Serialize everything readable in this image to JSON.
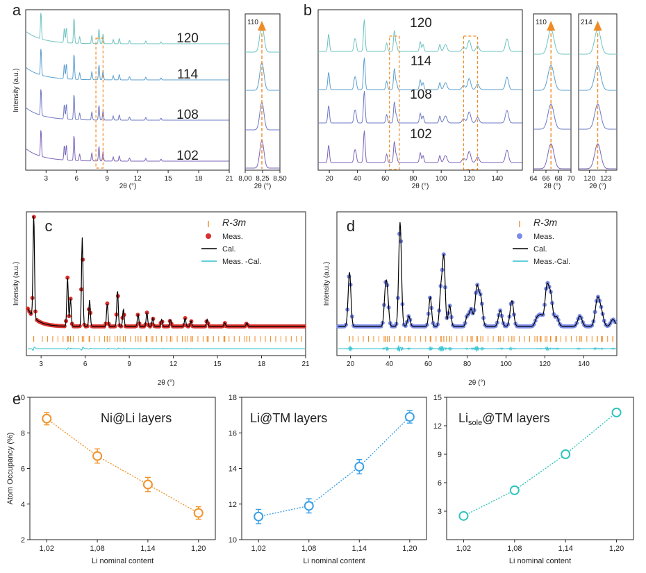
{
  "chart_data": [
    {
      "panel": "a",
      "type": "line",
      "xlabel": "2θ (°)",
      "ylabel": "Intensity (a.u.)",
      "xlim": [
        1,
        21
      ],
      "xticks": [
        3,
        6,
        9,
        12,
        15,
        18,
        21
      ],
      "peaks": [
        2.5,
        4.8,
        5.0,
        5.75,
        6.3,
        7.5,
        8.2,
        8.6,
        9.6,
        10.2,
        11.2,
        12.8,
        14.3
      ],
      "series": [
        {
          "name": "120",
          "color": "#6cc3c0"
        },
        {
          "name": "114",
          "color": "#5b9fcf"
        },
        {
          "name": "108",
          "color": "#6e79c4"
        },
        {
          "name": "102",
          "color": "#7b65b8"
        }
      ]
    },
    {
      "panel": "a-inset",
      "type": "line",
      "xlabel": "2θ (°)",
      "xlim": [
        8.0,
        8.5
      ],
      "xticks": [
        "8,00",
        "8,25",
        "8,50"
      ],
      "annotation": "110",
      "peak_center": 8.24
    },
    {
      "panel": "b",
      "type": "line",
      "xlabel": "2θ (°)",
      "xlim": [
        12,
        158
      ],
      "xticks": [
        20,
        40,
        60,
        80,
        100,
        120,
        140
      ],
      "peaks": [
        19.5,
        38,
        39,
        45,
        61,
        66.5,
        68,
        85,
        87,
        99,
        103,
        116,
        120,
        126,
        147
      ],
      "series": [
        {
          "name": "120",
          "color": "#6cc3c0"
        },
        {
          "name": "114",
          "color": "#5b9fcf"
        },
        {
          "name": "108",
          "color": "#6e79c4"
        },
        {
          "name": "102",
          "color": "#7b65b8"
        }
      ]
    },
    {
      "panel": "b-inset-1",
      "type": "line",
      "xlabel": "2θ (°)",
      "xlim": [
        64,
        70
      ],
      "xticks": [
        64,
        66,
        68,
        70
      ],
      "annotation": "110",
      "peak_center": 66.8
    },
    {
      "panel": "b-inset-2",
      "type": "line",
      "xlabel": "2θ (°)",
      "xlim": [
        118,
        125
      ],
      "xticks": [
        120,
        123
      ],
      "annotation": "214",
      "peak_center": 121.5
    },
    {
      "panel": "c",
      "type": "scatter",
      "xlabel": "2θ (°)",
      "ylabel": "Intensity (a.u.)",
      "xlim": [
        2,
        21
      ],
      "xticks": [
        3,
        6,
        9,
        12,
        15,
        18,
        21
      ],
      "legend": [
        "R-3m",
        "Meas.",
        "Cal.",
        "Meas. -Cal."
      ],
      "legend_placement": "top-right",
      "colors": {
        "meas": "#d9302c",
        "cal": "#000000",
        "diff": "#2bbfcf",
        "bragg": "#f08a24"
      }
    },
    {
      "panel": "d",
      "type": "scatter",
      "xlabel": "2θ (°)",
      "ylabel": "Intensity (a.u.)",
      "xlim": [
        13,
        157
      ],
      "xticks": [
        20,
        40,
        60,
        80,
        100,
        120,
        140
      ],
      "legend": [
        "R-3m",
        "Meas.",
        "Cal.",
        "Meas.-Cal."
      ],
      "legend_placement": "top-right",
      "colors": {
        "meas": "#7b8be8",
        "cal": "#000000",
        "diff": "#2bbfcf",
        "bragg": "#f08a24"
      }
    },
    {
      "panel": "e",
      "type": "scatter",
      "title": "Ni@Li layers",
      "xlabel": "Li nominal content",
      "ylabel": "Atom Occupancy (%)",
      "xlim": [
        1.0,
        1.22
      ],
      "ylim": [
        2,
        10
      ],
      "xticks": [
        "1,02",
        "1,08",
        "1,14",
        "1,20"
      ],
      "yticks": [
        2,
        4,
        6,
        8,
        10
      ],
      "x": [
        1.02,
        1.08,
        1.14,
        1.2
      ],
      "values": [
        8.8,
        6.7,
        5.1,
        3.5
      ],
      "errors": [
        0.35,
        0.4,
        0.4,
        0.35
      ],
      "color": "#f0932b"
    },
    {
      "panel": "e-2",
      "type": "scatter",
      "title": "Li@TM layers",
      "xlabel": "Li nominal content",
      "xlim": [
        1.0,
        1.22
      ],
      "ylim": [
        10,
        18
      ],
      "xticks": [
        "1,02",
        "1,08",
        "1,14",
        "1,20"
      ],
      "yticks": [
        10,
        12,
        14,
        16,
        18
      ],
      "x": [
        1.02,
        1.08,
        1.14,
        1.2
      ],
      "values": [
        11.3,
        11.9,
        14.1,
        16.9
      ],
      "errors": [
        0.4,
        0.4,
        0.4,
        0.35
      ],
      "color": "#3aa0e8"
    },
    {
      "panel": "e-3",
      "type": "scatter",
      "title_main": "Li",
      "title_sub": "sole",
      "title_rest": "@TM layers",
      "xlabel": "Li nominal content",
      "xlim": [
        1.0,
        1.22
      ],
      "ylim": [
        0,
        15
      ],
      "xticks": [
        "1,02",
        "1,08",
        "1,14",
        "1,20"
      ],
      "yticks": [
        3,
        6,
        9,
        12,
        15
      ],
      "x": [
        1.02,
        1.08,
        1.14,
        1.2
      ],
      "values": [
        2.5,
        5.2,
        9.0,
        13.4
      ],
      "errors": [
        0,
        0,
        0,
        0
      ],
      "color": "#2ec4bd"
    }
  ],
  "labels": {
    "a": "a",
    "b": "b",
    "c": "c",
    "d": "d",
    "e": "e"
  }
}
